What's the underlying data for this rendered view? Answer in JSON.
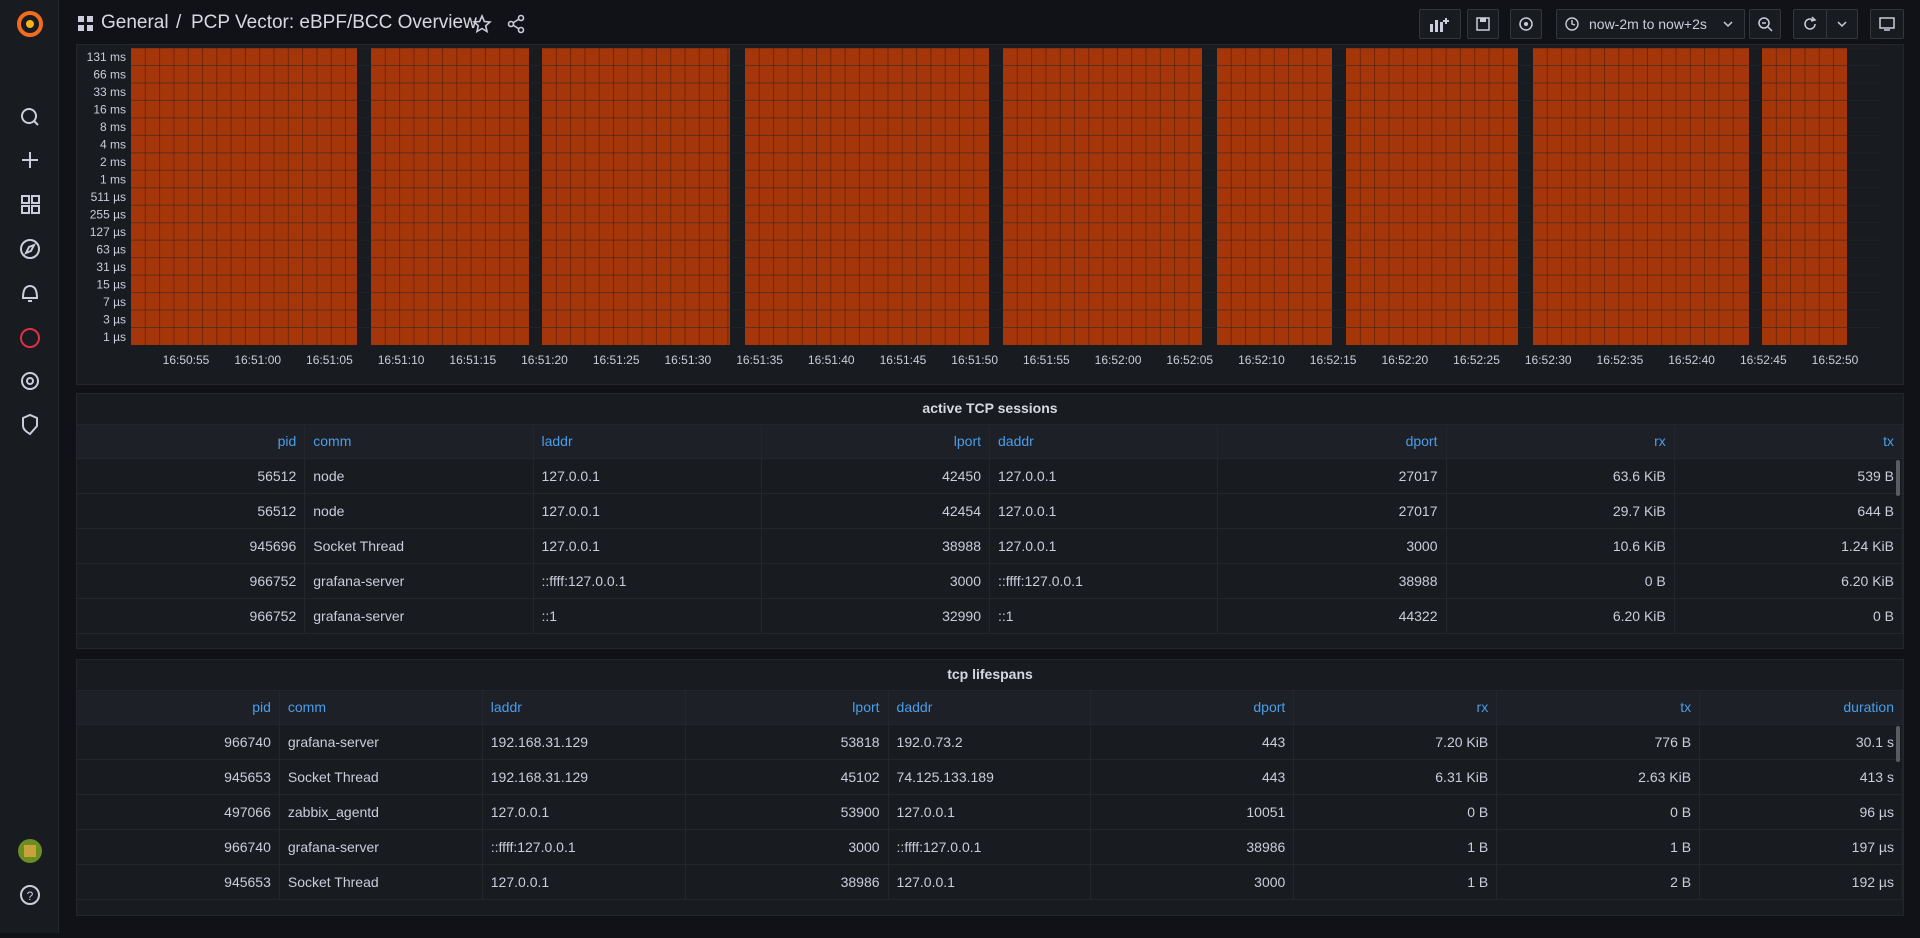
{
  "topbar": {
    "breadcrumb": [
      "General",
      "PCP Vector: eBPF/BCC Overview"
    ],
    "separator": "/",
    "time_range": "now-2m to now+2s"
  },
  "heatmap": {
    "y_labels": [
      "131 ms",
      "66 ms",
      "33 ms",
      "16 ms",
      "8 ms",
      "4 ms",
      "2 ms",
      "1 ms",
      "511 µs",
      "255 µs",
      "127 µs",
      "63 µs",
      "31 µs",
      "15 µs",
      "7 µs",
      "3 µs",
      "1 µs"
    ],
    "x_labels": [
      "16:50:55",
      "16:51:00",
      "16:51:05",
      "16:51:10",
      "16:51:15",
      "16:51:20",
      "16:51:25",
      "16:51:30",
      "16:51:35",
      "16:51:40",
      "16:51:45",
      "16:51:50",
      "16:51:55",
      "16:52:00",
      "16:52:05",
      "16:52:10",
      "16:52:15",
      "16:52:20",
      "16:52:25",
      "16:52:30",
      "16:52:35",
      "16:52:40",
      "16:52:45",
      "16:52:50"
    ]
  },
  "tables": [
    {
      "title": "active TCP sessions",
      "columns": [
        "pid",
        "comm",
        "laddr",
        "lport",
        "daddr",
        "dport",
        "rx",
        "tx"
      ],
      "rows": [
        [
          56512,
          "node",
          "127.0.0.1",
          42450,
          "127.0.0.1",
          27017,
          "63.6 KiB",
          "539 B"
        ],
        [
          56512,
          "node",
          "127.0.0.1",
          42454,
          "127.0.0.1",
          27017,
          "29.7 KiB",
          "644 B"
        ],
        [
          945696,
          "Socket Thread",
          "127.0.0.1",
          38988,
          "127.0.0.1",
          3000,
          "10.6 KiB",
          "1.24 KiB"
        ],
        [
          966752,
          "grafana-server",
          "::ffff:127.0.0.1",
          3000,
          "::ffff:127.0.0.1",
          38988,
          "0 B",
          "6.20 KiB"
        ],
        [
          966752,
          "grafana-server",
          "::1",
          32990,
          "::1",
          44322,
          "6.20 KiB",
          "0 B"
        ]
      ]
    },
    {
      "title": "tcp lifespans",
      "columns": [
        "pid",
        "comm",
        "laddr",
        "lport",
        "daddr",
        "dport",
        "rx",
        "tx",
        "duration"
      ],
      "rows": [
        [
          966740,
          "grafana-server",
          "192.168.31.129",
          53818,
          "192.0.73.2",
          443,
          "7.20 KiB",
          "776 B",
          "30.1 s"
        ],
        [
          945653,
          "Socket Thread",
          "192.168.31.129",
          45102,
          "74.125.133.189",
          443,
          "6.31 KiB",
          "2.63 KiB",
          "413 s"
        ],
        [
          497066,
          "zabbix_agentd",
          "127.0.0.1",
          53900,
          "127.0.0.1",
          10051,
          "0 B",
          "0 B",
          "96 µs"
        ],
        [
          966740,
          "grafana-server",
          "::ffff:127.0.0.1",
          3000,
          "::ffff:127.0.0.1",
          38986,
          "1 B",
          "1 B",
          "197 µs"
        ],
        [
          945653,
          "Socket Thread",
          "127.0.0.1",
          38986,
          "127.0.0.1",
          3000,
          "1 B",
          "2 B",
          "192 µs"
        ]
      ]
    }
  ]
}
